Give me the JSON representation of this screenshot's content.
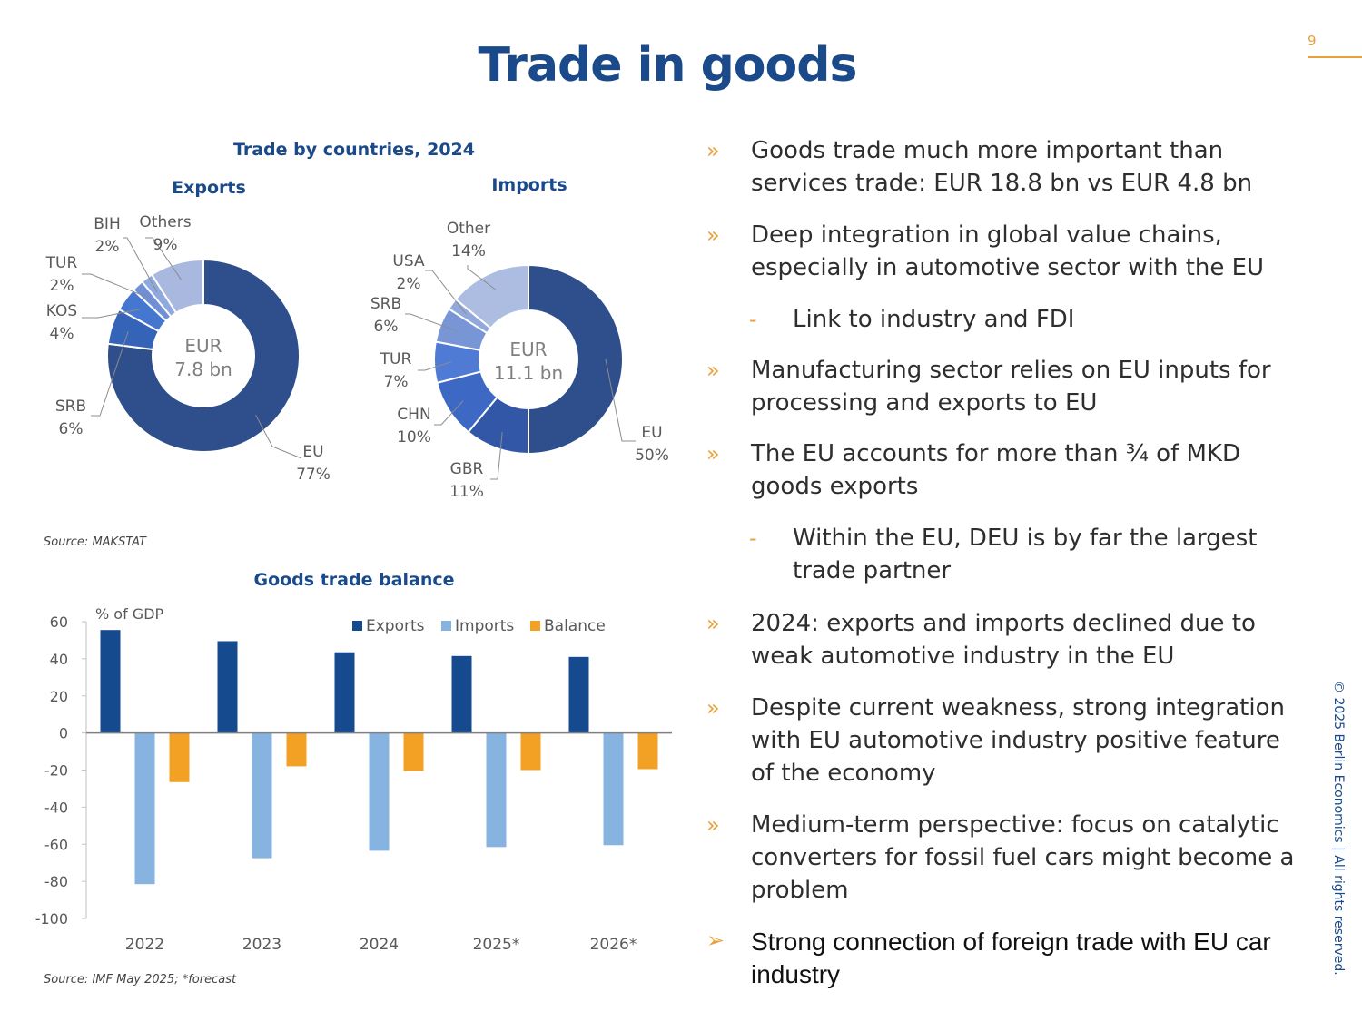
{
  "page": {
    "title": "Trade in goods",
    "page_number": "9",
    "copyright": "© 2025 Berlin Economics | All rights reserved."
  },
  "donut_section": {
    "title": "Trade by countries, 2024",
    "source": "Source: MAKSTAT"
  },
  "bar_section": {
    "title": "Goods trade balance",
    "source": "Source: IMF May 2025; *forecast"
  },
  "bullets": [
    {
      "level": 1,
      "marker": "»",
      "text": "Goods trade much more important than services trade: EUR 18.8 bn vs EUR 4.8 bn"
    },
    {
      "level": 1,
      "marker": "»",
      "text": "Deep integration in global value chains, especially in automotive sector with the EU"
    },
    {
      "level": 2,
      "marker": "-",
      "text": "Link to industry and FDI"
    },
    {
      "level": 1,
      "marker": "»",
      "text": "Manufacturing sector relies on EU inputs for processing and exports to EU"
    },
    {
      "level": 1,
      "marker": "»",
      "text": "The EU accounts for more than ¾ of MKD goods exports"
    },
    {
      "level": 2,
      "marker": "-",
      "text": "Within the EU, DEU is by far the largest trade partner"
    },
    {
      "level": 1,
      "marker": "»",
      "text": "2024: exports and imports declined due to weak automotive industry in the EU"
    },
    {
      "level": 1,
      "marker": "»",
      "text": "Despite current weakness, strong integration with EU automotive industry positive feature of the economy"
    },
    {
      "level": 1,
      "marker": "»",
      "text": "Medium-term perspective: focus on catalytic converters for fossil fuel cars might become a problem"
    },
    {
      "level": 0,
      "marker": "➢",
      "text": "Strong connection of foreign trade with EU car industry"
    }
  ],
  "chart_data": [
    {
      "type": "pie",
      "title": "Exports",
      "center_label": [
        "EUR",
        "7.8 bn"
      ],
      "slices": [
        {
          "label": "EU",
          "value": 77,
          "text": "77%",
          "color": "#2e4f8c"
        },
        {
          "label": "SRB",
          "value": 6,
          "text": "6%",
          "color": "#3463b8"
        },
        {
          "label": "KOS",
          "value": 4,
          "text": "4%",
          "color": "#4677d0"
        },
        {
          "label": "TUR",
          "value": 2,
          "text": "2%",
          "color": "#6f90d6"
        },
        {
          "label": "BIH",
          "value": 2,
          "text": "2%",
          "color": "#8fa8de"
        },
        {
          "label": "Others",
          "value": 9,
          "text": "9%",
          "color": "#a9b8de"
        }
      ]
    },
    {
      "type": "pie",
      "title": "Imports",
      "center_label": [
        "EUR",
        "11.1 bn"
      ],
      "slices": [
        {
          "label": "EU",
          "value": 50,
          "text": "50%",
          "color": "#2e4f8c"
        },
        {
          "label": "GBR",
          "value": 11,
          "text": "11%",
          "color": "#3157a6"
        },
        {
          "label": "CHN",
          "value": 10,
          "text": "10%",
          "color": "#3d68c4"
        },
        {
          "label": "TUR",
          "value": 7,
          "text": "7%",
          "color": "#4f7bd4"
        },
        {
          "label": "SRB",
          "value": 6,
          "text": "6%",
          "color": "#7895d6"
        },
        {
          "label": "USA",
          "value": 2,
          "text": "2%",
          "color": "#91a8dc"
        },
        {
          "label": "Other",
          "value": 14,
          "text": "14%",
          "color": "#adbde2"
        }
      ]
    },
    {
      "type": "bar",
      "title": "Goods trade balance",
      "ylabel": "% of GDP",
      "categories": [
        "2022",
        "2023",
        "2024",
        "2025*",
        "2026*"
      ],
      "series": [
        {
          "name": "Exports",
          "color": "#154a8f",
          "values": [
            55.5,
            49.5,
            43.5,
            41.5,
            41
          ]
        },
        {
          "name": "Imports",
          "color": "#86b3e0",
          "values": [
            -81.5,
            -67.5,
            -63.5,
            -61.5,
            -60.5
          ]
        },
        {
          "name": "Balance",
          "color": "#f2a125",
          "values": [
            -26.5,
            -18,
            -20.5,
            -20,
            -19.5
          ]
        }
      ],
      "ylim": [
        -100,
        60
      ],
      "yticks": [
        "60",
        "40",
        "20",
        "0",
        "-20",
        "-40",
        "-60",
        "-80",
        "-100"
      ],
      "legend": "top-right",
      "grid": false
    }
  ]
}
